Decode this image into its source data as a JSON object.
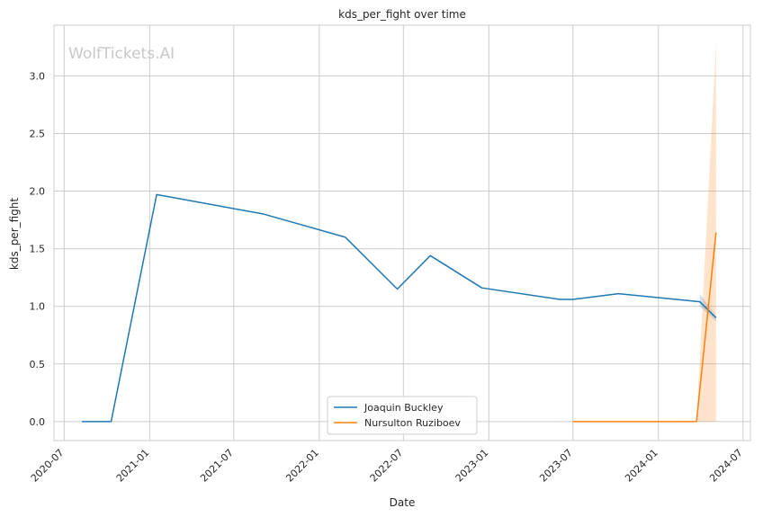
{
  "chart_data": {
    "type": "line",
    "title": "kds_per_fight over time",
    "xlabel": "Date",
    "ylabel": "kds_per_fight",
    "watermark": "WolfTickets.AI",
    "x_ticks": [
      "2020-07",
      "2021-01",
      "2021-07",
      "2022-01",
      "2022-07",
      "2023-01",
      "2023-07",
      "2024-01",
      "2024-07"
    ],
    "y_ticks": [
      "0.0",
      "0.5",
      "1.0",
      "1.5",
      "2.0",
      "2.5",
      "3.0"
    ],
    "xlim": [
      "2020-06-09",
      "2024-07-17"
    ],
    "ylim": [
      -0.165,
      3.44
    ],
    "grid": true,
    "legend_position": "bottom-center",
    "series": [
      {
        "name": "Joaquin Buckley",
        "color": "#1f77b4",
        "points": [
          {
            "x": "2020-08-08",
            "y": 0.0
          },
          {
            "x": "2020-10-10",
            "y": 0.0
          },
          {
            "x": "2021-01-16",
            "y": 1.97
          },
          {
            "x": "2021-09-04",
            "y": 1.8
          },
          {
            "x": "2022-02-26",
            "y": 1.6
          },
          {
            "x": "2022-06-18",
            "y": 1.15
          },
          {
            "x": "2022-08-28",
            "y": 1.44
          },
          {
            "x": "2022-12-17",
            "y": 1.16
          },
          {
            "x": "2023-06-03",
            "y": 1.06
          },
          {
            "x": "2023-07-01",
            "y": 1.06
          },
          {
            "x": "2023-10-07",
            "y": 1.11
          },
          {
            "x": "2024-03-30",
            "y": 1.04
          },
          {
            "x": "2024-05-04",
            "y": 0.9
          }
        ],
        "band": [
          {
            "x": "2024-03-30",
            "low": 1.0,
            "high": 1.11
          },
          {
            "x": "2024-05-04",
            "low": 0.87,
            "high": 0.92
          }
        ]
      },
      {
        "name": "Nursulton Ruziboev",
        "color": "#ff7f0e",
        "points": [
          {
            "x": "2023-07-01",
            "y": 0.0
          },
          {
            "x": "2024-03-23",
            "y": 0.0
          },
          {
            "x": "2024-05-04",
            "y": 1.64
          }
        ],
        "band": [
          {
            "x": "2024-03-23",
            "low": 0.0,
            "high": 0.0
          },
          {
            "x": "2024-05-04",
            "low": 0.0,
            "high": 3.28
          }
        ]
      }
    ]
  }
}
